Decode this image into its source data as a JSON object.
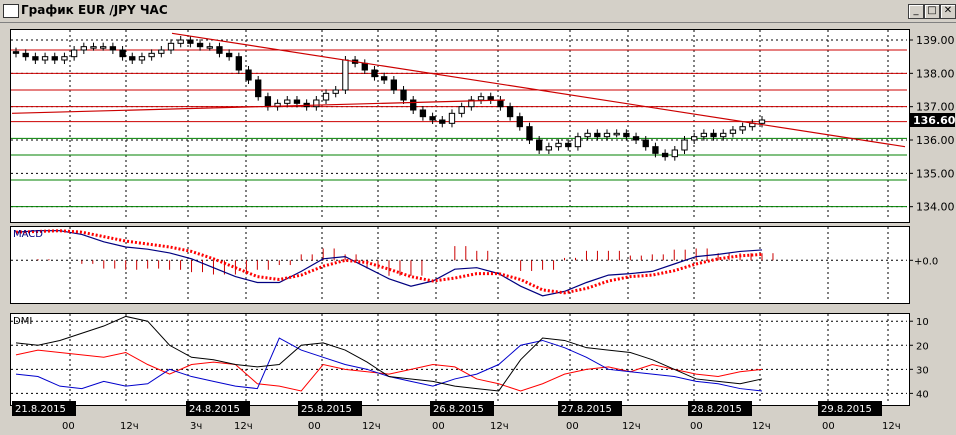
{
  "window": {
    "title": "График EUR /JPY  ЧАС",
    "minimize_glyph": "_",
    "maximize_glyph": "□",
    "close_glyph": "✕"
  },
  "price_panel": {
    "y_ticks": [
      "139.00",
      "138.00",
      "137.00",
      "136.00",
      "135.00",
      "134.00"
    ],
    "current_price_label": "136.60"
  },
  "macd_panel": {
    "label": "MACD",
    "zero_label": "+0.0"
  },
  "dmi_panel": {
    "label": "DMI",
    "y_ticks": [
      "40",
      "30",
      "20",
      "10"
    ]
  },
  "date_labels": [
    "21.8.2015",
    "24.8.2015",
    "25.8.2015",
    "26.8.2015",
    "27.8.2015",
    "28.8.2015",
    "29.8.2015"
  ],
  "time_labels": [
    "00",
    "12ч",
    "3ч",
    "12ч",
    "00",
    "12ч",
    "00",
    "12ч",
    "00",
    "12ч",
    "00",
    "12ч",
    "00",
    "12ч"
  ],
  "colors": {
    "candles": "#000000",
    "trendline": "#cc0000",
    "resistance_lines": "#cc0000",
    "support_lines": "#008000",
    "macd_line": "#000080",
    "macd_signal": "#ff0000",
    "macd_histogram": "#cc0000",
    "dmi_adx": "#000000",
    "dmi_plus": "#0000cc",
    "dmi_minus": "#ff0000"
  },
  "chart_data": [
    {
      "type": "candlestick",
      "title": "EUR/JPY H1",
      "x_range": [
        "21.8.2015",
        "29.8.2015 12ч"
      ],
      "ylim": [
        133.6,
        139.3
      ],
      "closes": [
        138.6,
        138.5,
        138.4,
        138.5,
        138.4,
        138.5,
        138.7,
        138.8,
        138.8,
        138.8,
        138.7,
        138.5,
        138.4,
        138.5,
        138.6,
        138.7,
        138.9,
        139.0,
        138.9,
        138.8,
        138.8,
        138.6,
        138.5,
        138.1,
        137.8,
        137.3,
        137.0,
        137.1,
        137.2,
        137.1,
        137.0,
        137.2,
        137.4,
        137.5,
        138.4,
        138.3,
        138.1,
        137.9,
        137.8,
        137.5,
        137.2,
        136.9,
        136.7,
        136.6,
        136.5,
        136.8,
        137.0,
        137.2,
        137.3,
        137.2,
        137.0,
        136.7,
        136.4,
        136.0,
        135.7,
        135.8,
        135.9,
        135.8,
        136.1,
        136.2,
        136.1,
        136.2,
        136.2,
        136.1,
        136.0,
        135.8,
        135.6,
        135.5,
        135.7,
        136.0,
        136.1,
        136.2,
        136.1,
        136.2,
        136.3,
        136.4,
        136.5,
        136.6
      ],
      "trendlines": [
        {
          "from": [
            "22.8.2015",
            139.2
          ],
          "to": [
            "29.8.2015 12ч",
            135.8
          ],
          "color": "#cc0000"
        },
        {
          "from": [
            "21.8.2015",
            136.8
          ],
          "to": [
            "26.8.2015 12ч",
            137.2
          ],
          "color": "#cc0000"
        }
      ],
      "horizontal_levels": [
        {
          "value": 138.7,
          "color": "#cc0000"
        },
        {
          "value": 138.0,
          "color": "#cc0000"
        },
        {
          "value": 137.5,
          "color": "#cc0000"
        },
        {
          "value": 137.0,
          "color": "#cc0000"
        },
        {
          "value": 136.55,
          "color": "#cc0000"
        },
        {
          "value": 136.05,
          "color": "#008000"
        },
        {
          "value": 135.55,
          "color": "#008000"
        },
        {
          "value": 134.8,
          "color": "#008000"
        },
        {
          "value": 134.0,
          "color": "#008000"
        }
      ],
      "grid": true
    },
    {
      "type": "line",
      "name": "MACD",
      "macd": [
        0.38,
        0.4,
        0.4,
        0.35,
        0.25,
        0.18,
        0.15,
        0.1,
        0.02,
        -0.1,
        -0.22,
        -0.3,
        -0.3,
        -0.15,
        0.02,
        0.05,
        -0.1,
        -0.25,
        -0.35,
        -0.28,
        -0.12,
        -0.1,
        -0.18,
        -0.35,
        -0.48,
        -0.42,
        -0.3,
        -0.2,
        -0.18,
        -0.15,
        -0.05,
        0.05,
        0.08,
        0.12,
        0.14
      ],
      "signal": [
        0.38,
        0.39,
        0.4,
        0.38,
        0.32,
        0.26,
        0.22,
        0.18,
        0.12,
        0.02,
        -0.1,
        -0.22,
        -0.26,
        -0.2,
        -0.08,
        0.0,
        -0.03,
        -0.12,
        -0.22,
        -0.28,
        -0.24,
        -0.18,
        -0.18,
        -0.26,
        -0.4,
        -0.44,
        -0.38,
        -0.28,
        -0.22,
        -0.2,
        -0.14,
        -0.05,
        0.02,
        0.06,
        0.08
      ],
      "ylim": [
        -0.55,
        0.45
      ]
    },
    {
      "type": "line",
      "name": "DMI",
      "adx": [
        31,
        30,
        32,
        35,
        38,
        42,
        40,
        30,
        25,
        24,
        22,
        21,
        22,
        30,
        31,
        28,
        23,
        17,
        16,
        15,
        13,
        12,
        11,
        24,
        33,
        32,
        29,
        28,
        27,
        24,
        20,
        16,
        15,
        14,
        16
      ],
      "plus_di": [
        18,
        17,
        13,
        12,
        15,
        13,
        14,
        20,
        17,
        15,
        13,
        12,
        33,
        28,
        25,
        22,
        20,
        17,
        15,
        13,
        16,
        18,
        22,
        30,
        32,
        29,
        25,
        20,
        19,
        18,
        17,
        15,
        14,
        12,
        11
      ],
      "minus_di": [
        26,
        28,
        27,
        26,
        25,
        27,
        22,
        18,
        22,
        23,
        22,
        14,
        13,
        11,
        22,
        20,
        19,
        18,
        20,
        22,
        21,
        16,
        14,
        11,
        14,
        18,
        20,
        21,
        19,
        22,
        20,
        18,
        17,
        19,
        20
      ],
      "ylim": [
        6,
        43
      ],
      "y_ticks": [
        10,
        20,
        30,
        40
      ]
    }
  ]
}
